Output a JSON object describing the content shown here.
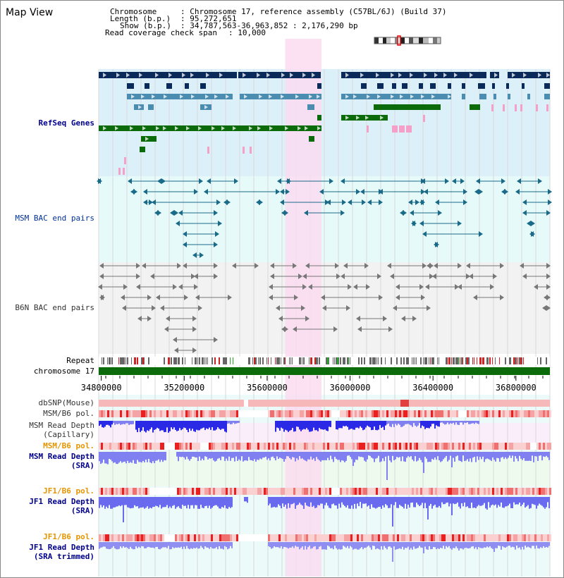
{
  "title": "Map View",
  "info": {
    "chromosome_key": "Chromosome",
    "chromosome_val": ": Chromosome 17, reference assembly (C57BL/6J) (Build 37)",
    "length_key": "Length (b.p.)",
    "length_val": ": 95,272,651",
    "show_key": "Show (b.p.)",
    "show_val": ": 34,787,563-36,963,852 : 2,176,290 bp",
    "coverage_key": "Read coverage check span",
    "coverage_val": ": 10,000"
  },
  "tracks": {
    "refseq": "RefSeq Genes",
    "msm_bac": "MSM BAC end pairs",
    "b6n_bac": "B6N BAC end pairs",
    "repeat": "Repeat",
    "chromosome": "chromosome 17",
    "dbsnp": "dbSNP(Mouse)",
    "msm_b6_pol_1": "MSM/B6 pol.",
    "msm_depth_cap_1": "MSM Read Depth",
    "msm_depth_cap_2": "(Capillary)",
    "msm_b6_pol_2": "MSM/B6 pol.",
    "msm_depth_sra_1": "MSM Read Depth",
    "msm_depth_sra_2": "(SRA)",
    "jf1_pol_1": "JF1/B6 pol.",
    "jf1_depth_1": "JF1 Read Depth",
    "jf1_depth_2": "(SRA)",
    "jf1_pol_2": "JF1/B6 pol.",
    "jf1_trim_1": "JF1 Read Depth",
    "jf1_trim_2": "(SRA trimmed)"
  },
  "axis": {
    "ticks": [
      "34800000",
      "35200000",
      "35600000",
      "36000000",
      "36400000",
      "36800000"
    ],
    "tick_values": [
      34800000,
      35200000,
      35600000,
      36000000,
      36400000,
      36800000
    ],
    "range": [
      34787563,
      36963852
    ]
  },
  "highlight_region": [
    35687000,
    35862000
  ],
  "colors": {
    "refseq_bg": "#dcf0fa",
    "msm_bg": "#e6fafa",
    "highlight": "#fadcf0",
    "gene_dark": "#0a2a5a",
    "gene_mid": "#4a8db0",
    "gene_green": "#0b6b0b",
    "gene_pink": "#f5a0c8",
    "bac_msm": "#1a6a8a",
    "bac_b6n": "#777777",
    "chromosome": "#0b6b0b",
    "depth": "#2a2ae6",
    "depth_light": "#8080f0"
  }
}
